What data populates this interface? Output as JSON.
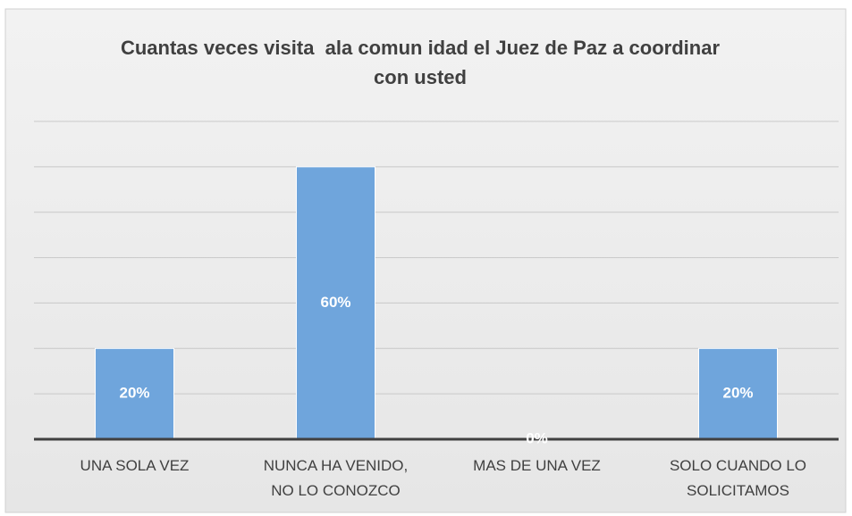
{
  "chart_data": {
    "type": "bar",
    "title": "Cuantas veces visita  ala comun idad el Juez de Paz a coordinar con usted",
    "categories": [
      "UNA SOLA VEZ",
      "NUNCA HA VENIDO, NO LO CONOZCO",
      "MAS DE UNA VEZ",
      "SOLO CUANDO LO SOLICITAMOS"
    ],
    "values": [
      20,
      60,
      0,
      20
    ],
    "value_labels": [
      "20%",
      "60%",
      "0%",
      "20%"
    ],
    "color": "#6fa5dc",
    "ylim": [
      0,
      70
    ],
    "yticks": [
      0,
      10,
      20,
      30,
      40,
      50,
      60,
      70
    ],
    "grid": true
  }
}
